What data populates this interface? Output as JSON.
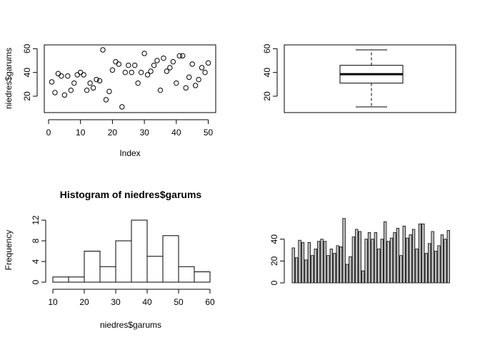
{
  "chart_data": [
    {
      "type": "scatter",
      "title": "",
      "xlabel": "Index",
      "ylabel": "niedres$garums",
      "xlim": [
        0,
        51
      ],
      "ylim": [
        8,
        62
      ],
      "xticks": [
        0,
        10,
        20,
        30,
        40,
        50
      ],
      "yticks": [
        20,
        40,
        60
      ],
      "x": [
        1,
        2,
        3,
        4,
        5,
        6,
        7,
        8,
        9,
        10,
        11,
        12,
        13,
        14,
        15,
        16,
        17,
        18,
        19,
        20,
        21,
        22,
        23,
        24,
        25,
        26,
        27,
        28,
        29,
        30,
        31,
        32,
        33,
        34,
        35,
        36,
        37,
        38,
        39,
        40,
        41,
        42,
        43,
        44,
        45,
        46,
        47,
        48,
        49,
        50
      ],
      "y": [
        32,
        23,
        39,
        37,
        21,
        37,
        25,
        31,
        38,
        40,
        38,
        25,
        31,
        27,
        34,
        33,
        59,
        17,
        24,
        42,
        49,
        47,
        11,
        40,
        46,
        40,
        46,
        31,
        40,
        56,
        38,
        41,
        46,
        50,
        25,
        52,
        41,
        44,
        49,
        31,
        54,
        54,
        27,
        36,
        47,
        29,
        34,
        44,
        40,
        48
      ]
    },
    {
      "type": "boxplot",
      "title": "",
      "ylim": [
        8,
        62
      ],
      "yticks": [
        20,
        40,
        60
      ],
      "whisker_low": 11,
      "q1": 31,
      "median": 38.5,
      "q3": 46,
      "whisker_high": 59
    },
    {
      "type": "bar",
      "title": "Histogram of niedres$garums",
      "xlabel": "niedres$garums",
      "ylabel": "Frequency",
      "xlim": [
        10,
        60
      ],
      "ylim": [
        0,
        12
      ],
      "xticks": [
        10,
        20,
        30,
        40,
        50,
        60
      ],
      "yticks": [
        0,
        4,
        8,
        12
      ],
      "breaks": [
        10,
        15,
        20,
        25,
        30,
        35,
        40,
        45,
        50,
        55,
        60
      ],
      "counts": [
        1,
        1,
        6,
        3,
        8,
        12,
        5,
        9,
        3,
        2
      ]
    },
    {
      "type": "bar",
      "title": "",
      "ylim": [
        0,
        60
      ],
      "yticks": [
        0,
        20,
        40
      ],
      "values": [
        32,
        23,
        39,
        37,
        21,
        37,
        25,
        31,
        38,
        40,
        38,
        25,
        31,
        27,
        34,
        33,
        59,
        17,
        24,
        42,
        49,
        47,
        11,
        40,
        46,
        40,
        46,
        31,
        40,
        56,
        38,
        41,
        46,
        50,
        25,
        52,
        41,
        44,
        49,
        31,
        54,
        54,
        27,
        36,
        47,
        29,
        34,
        44,
        40,
        48
      ],
      "bar_color": "#bebebe"
    }
  ]
}
